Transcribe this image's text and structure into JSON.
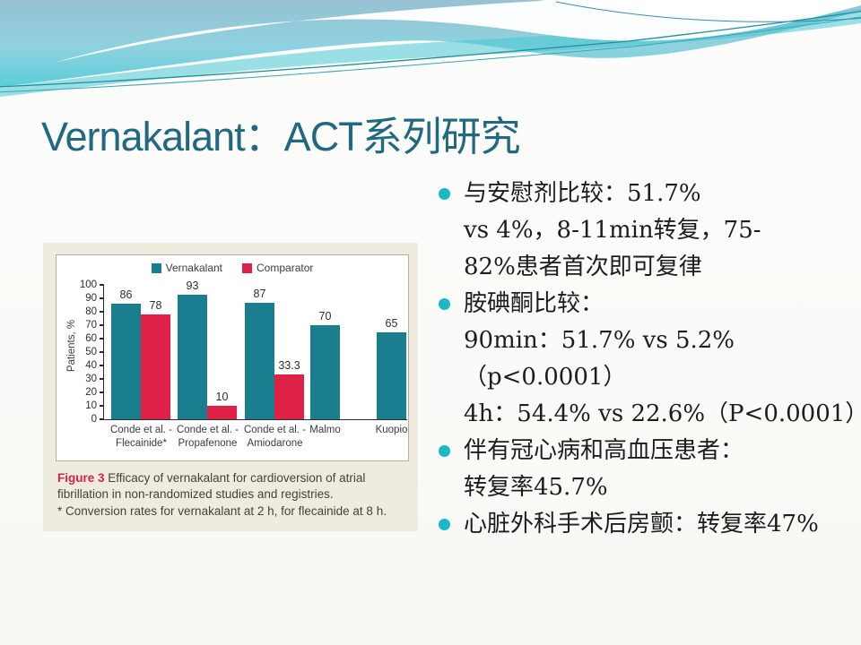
{
  "slide": {
    "title": "Vernakalant：ACT系列研究",
    "colors": {
      "title_teal": "#20697f",
      "bullet_dot": "#1bb9c7",
      "figure_background": "#efecdf",
      "caption_red": "#d5234a",
      "bar_teal": "#1a7e8e",
      "bar_red": "#df2148"
    }
  },
  "chart_data": {
    "type": "bar",
    "title": "",
    "xlabel": "",
    "ylabel": "Patients, %",
    "ylim": [
      0,
      100
    ],
    "ytick_step": 10,
    "grid": false,
    "legend_position": "top-center",
    "categories": [
      "Conde et al. -\nFlecainide*",
      "Conde et al. -\nPropafenone",
      "Conde et al. -\nAmiodarone",
      "Malmo",
      "Kuopio"
    ],
    "series": [
      {
        "name": "Vernakalant",
        "color": "#1a7e8e",
        "values": [
          86,
          93,
          87,
          70,
          65
        ]
      },
      {
        "name": "Comparator",
        "color": "#df2148",
        "values": [
          78,
          10,
          33.3,
          null,
          null
        ]
      }
    ],
    "bar_value_labels": [
      "86",
      "78",
      "93",
      "10",
      "87",
      "33.3",
      "70",
      "65"
    ]
  },
  "figure": {
    "caption_label": "Figure 3",
    "caption_text": " Efficacy of vernakalant for cardioversion of atrial fibrillation in non-randomized studies and registries.",
    "footnote": "* Conversion rates for vernakalant at 2 h, for flecainide at 8 h."
  },
  "bullets": {
    "items": [
      {
        "lines": [
          "与安慰剂比较：51.7%",
          "vs 4%，8-11min转复，75-",
          "82%患者首次即可复律"
        ]
      },
      {
        "lines": [
          "胺碘酮比较：",
          "90min：51.7% vs 5.2%",
          "（p<0.0001）",
          "4h：54.4% vs 22.6%（P<0.0001）"
        ]
      },
      {
        "lines": [
          "伴有冠心病和高血压患者：",
          "转复率45.7%"
        ]
      },
      {
        "lines": [
          "心脏外科手术后房颤：转复率47%"
        ]
      }
    ]
  }
}
